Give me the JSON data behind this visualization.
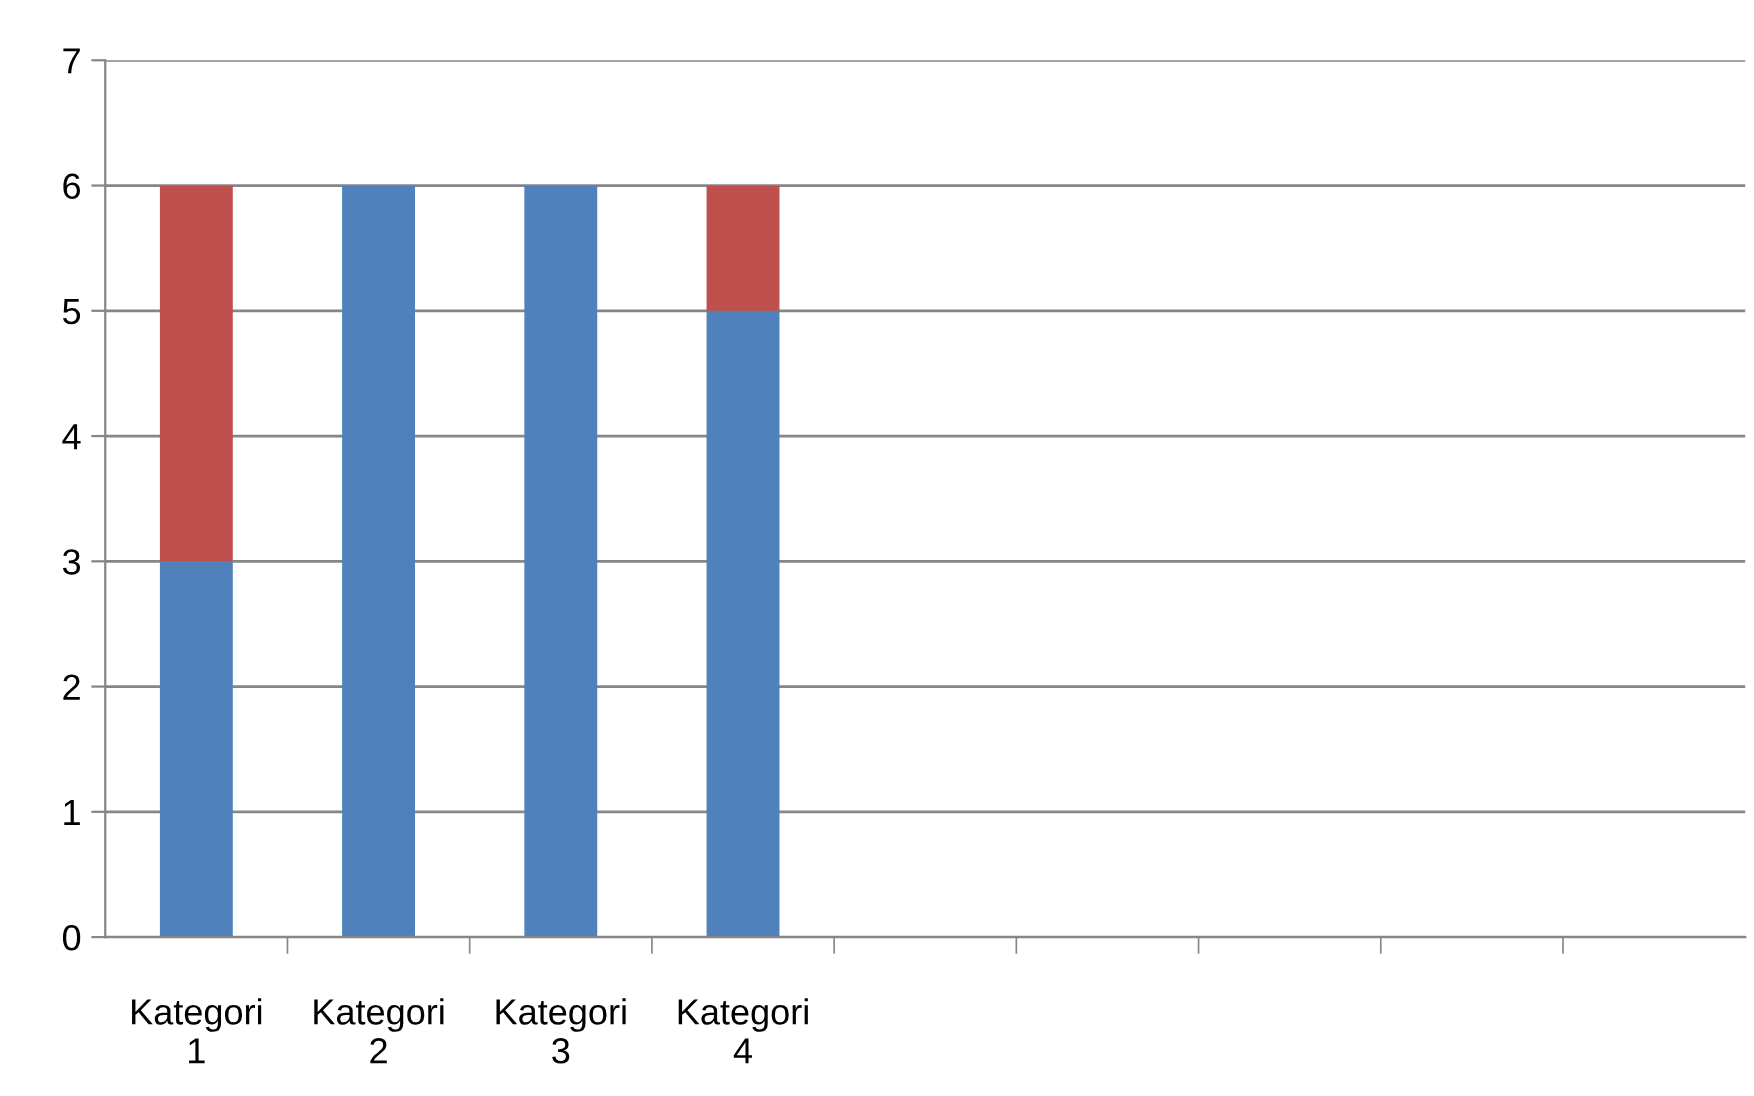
{
  "chart_data": {
    "type": "bar",
    "stacked": true,
    "categories": [
      "Kategori 1",
      "Kategori 2",
      "Kategori 3",
      "Kategori 4",
      null,
      null,
      null,
      null,
      null
    ],
    "series": [
      {
        "color": "#4f81bd",
        "values": [
          3,
          6,
          6,
          5,
          null,
          null,
          null,
          null,
          null
        ]
      },
      {
        "color": "#c0504d",
        "values": [
          3,
          0,
          0,
          1,
          null,
          null,
          null,
          null,
          null
        ]
      }
    ],
    "ylim": [
      0,
      7
    ],
    "yticks": [
      0,
      1,
      2,
      3,
      4,
      5,
      6,
      7
    ],
    "grid": "y"
  }
}
